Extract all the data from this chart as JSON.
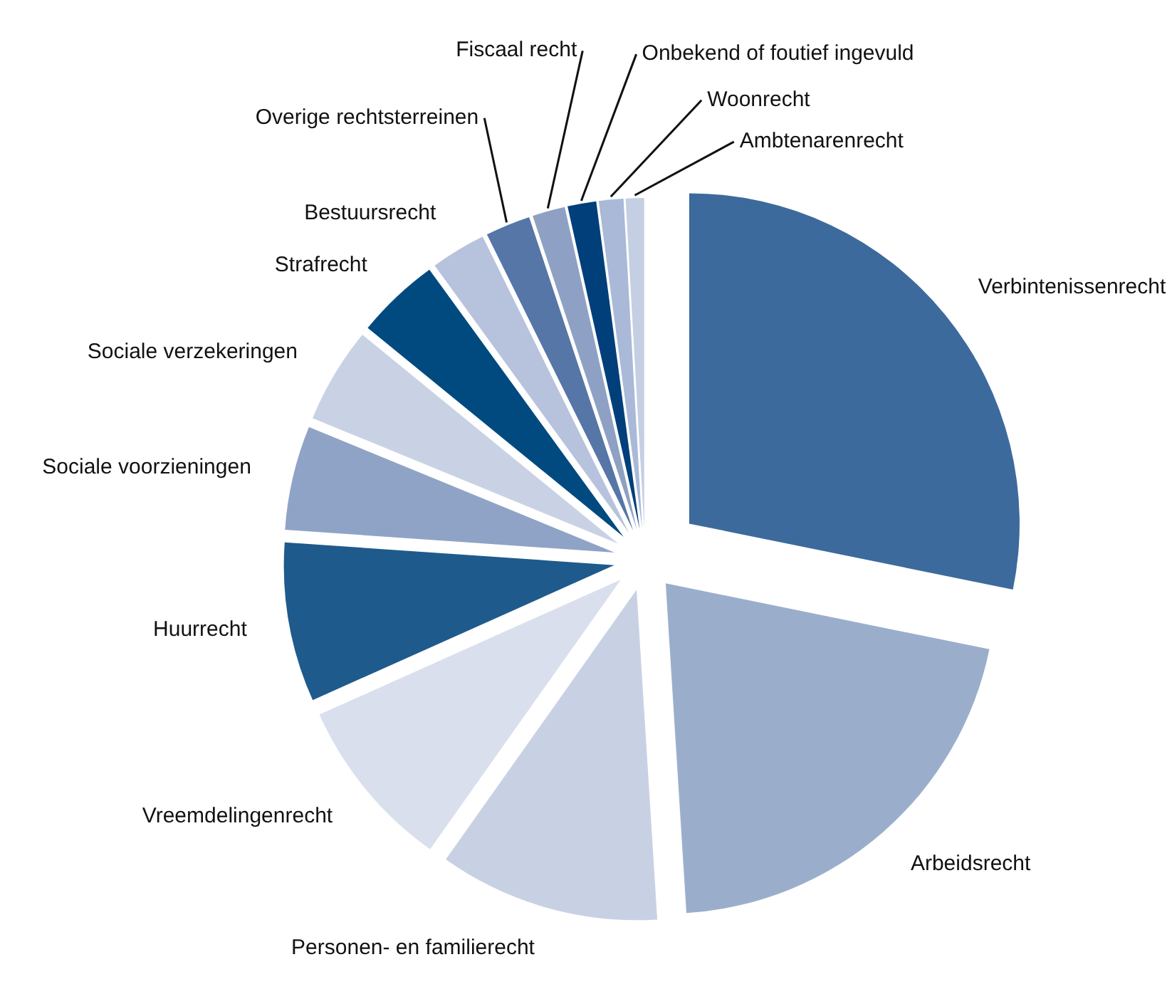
{
  "chart_data": {
    "type": "pie",
    "categories": [
      "Verbintenissenrecht",
      "Arbeidsrecht",
      "Personen- en familierecht",
      "Vreemdelingenrecht",
      "Huurrecht",
      "Sociale voorzieningen",
      "Sociale verzekeringen",
      "Strafrecht",
      "Bestuursrecht",
      "Overige rechtsterreinen",
      "Fiscaal recht",
      "Onbekend of foutief ingevuld",
      "Woonrecht",
      "Ambtenarenrecht"
    ],
    "values": [
      28.2,
      20.8,
      10.8,
      8.5,
      7.8,
      5.1,
      4.7,
      4.1,
      2.7,
      2.2,
      1.6,
      1.4,
      1.2,
      0.9
    ],
    "colors": [
      "#3d6a9c",
      "#9aaecc",
      "#c8d1e4",
      "#dadfed",
      "#1f5a8c",
      "#8fa3c6",
      "#c9d2e5",
      "#004a80",
      "#b7c3dc",
      "#5576a6",
      "#8ea1c5",
      "#003f7a",
      "#a9b9d7",
      "#c5cfe3"
    ]
  }
}
